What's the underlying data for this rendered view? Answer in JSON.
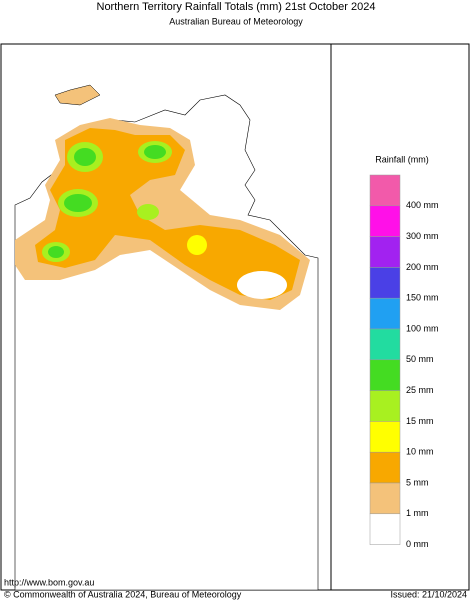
{
  "header": {
    "title": "Northern Territory Rainfall Totals (mm) 21st October 2024",
    "subtitle": "Australian Bureau of Meteorology"
  },
  "legend": {
    "title": "Rainfall (mm)",
    "colors": [
      "#f25aaa",
      "#ff10e8",
      "#a222f0",
      "#4a40e6",
      "#20a0f2",
      "#22dca0",
      "#44dc22",
      "#a8f020",
      "#ffff00",
      "#f8a800",
      "#f4c27a",
      "#ffffff"
    ],
    "labels": [
      "400 mm",
      "300 mm",
      "200 mm",
      "150 mm",
      "100 mm",
      "50 mm",
      "25 mm",
      "15 mm",
      "10 mm",
      "5 mm",
      "1 mm",
      "0 mm"
    ]
  },
  "footer": {
    "url": "http://www.bom.gov.au",
    "copyright": "© Commonwealth of Australia 2024, Bureau of Meteorology",
    "issued": "Issued: 21/10/2024"
  }
}
